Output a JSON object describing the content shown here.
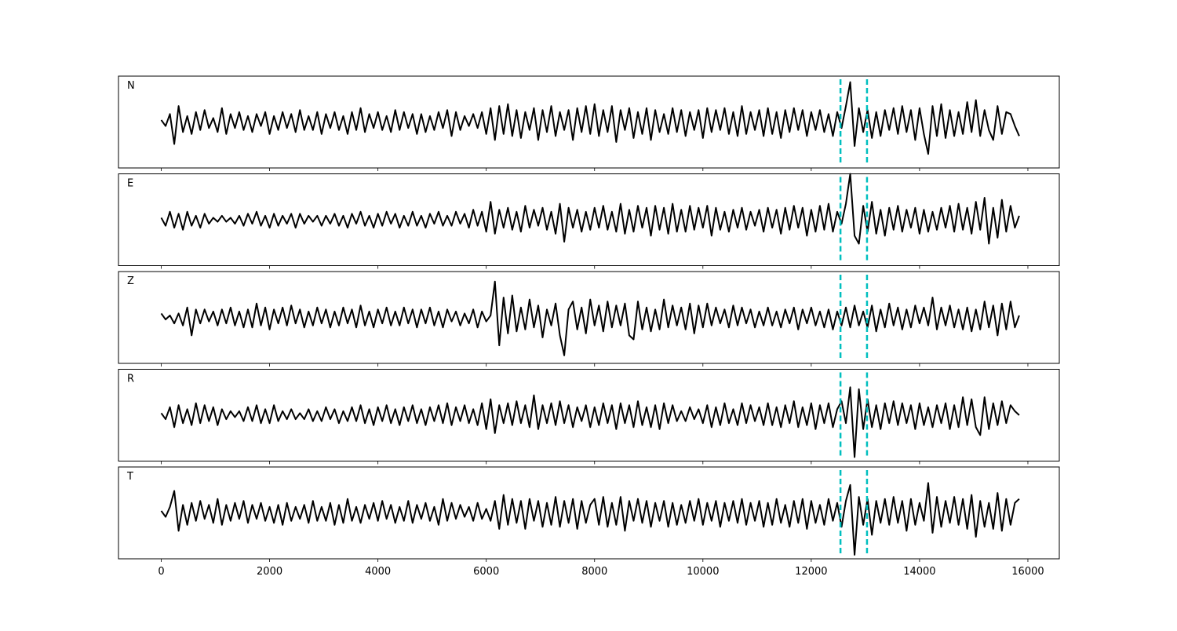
{
  "chart_data": {
    "type": "line",
    "x": [
      0,
      80,
      160,
      240,
      320,
      400,
      480,
      560,
      640,
      720,
      800,
      880,
      960,
      1040,
      1120,
      1200,
      1280,
      1360,
      1440,
      1520,
      1600,
      1680,
      1760,
      1840,
      1920,
      2000,
      2080,
      2160,
      2240,
      2320,
      2400,
      2480,
      2560,
      2640,
      2720,
      2800,
      2880,
      2960,
      3040,
      3120,
      3200,
      3280,
      3360,
      3440,
      3520,
      3600,
      3680,
      3760,
      3840,
      3920,
      4000,
      4080,
      4160,
      4240,
      4320,
      4400,
      4480,
      4560,
      4640,
      4720,
      4800,
      4880,
      4960,
      5040,
      5120,
      5200,
      5280,
      5360,
      5440,
      5520,
      5600,
      5680,
      5760,
      5840,
      5920,
      6000,
      6080,
      6160,
      6240,
      6320,
      6400,
      6480,
      6560,
      6640,
      6720,
      6800,
      6880,
      6960,
      7040,
      7120,
      7200,
      7280,
      7360,
      7440,
      7520,
      7600,
      7680,
      7760,
      7840,
      7920,
      8000,
      8080,
      8160,
      8240,
      8320,
      8400,
      8480,
      8560,
      8640,
      8720,
      8800,
      8880,
      8960,
      9040,
      9120,
      9200,
      9280,
      9360,
      9440,
      9520,
      9600,
      9680,
      9760,
      9840,
      9920,
      10000,
      10080,
      10160,
      10240,
      10320,
      10400,
      10480,
      10560,
      10640,
      10720,
      10800,
      10880,
      10960,
      11040,
      11120,
      11200,
      11280,
      11360,
      11440,
      11520,
      11600,
      11680,
      11760,
      11840,
      11920,
      12000,
      12080,
      12160,
      12240,
      12320,
      12400,
      12480,
      12560,
      12640,
      12720,
      12800,
      12880,
      12960,
      13040,
      13120,
      13200,
      13280,
      13360,
      13440,
      13520,
      13600,
      13680,
      13760,
      13840,
      13920,
      14000,
      14080,
      14160,
      14240,
      14320,
      14400,
      14480,
      14560,
      14640,
      14720,
      14800,
      14880,
      14960,
      15040,
      15120,
      15200,
      15280,
      15360,
      15440,
      15520,
      15600,
      15680,
      15760,
      15840
    ],
    "series": [
      {
        "name": "N",
        "color": "#000000",
        "values": [
          5,
          -10,
          20,
          -55,
          40,
          -25,
          15,
          -30,
          25,
          -20,
          30,
          -15,
          10,
          -25,
          35,
          -30,
          20,
          -15,
          25,
          -20,
          15,
          -25,
          20,
          -10,
          25,
          -30,
          15,
          -20,
          25,
          -15,
          20,
          -25,
          30,
          -20,
          15,
          -20,
          25,
          -30,
          20,
          -15,
          25,
          -20,
          15,
          -30,
          25,
          -20,
          35,
          -25,
          20,
          -15,
          25,
          -20,
          15,
          -25,
          30,
          -20,
          25,
          -15,
          20,
          -30,
          20,
          -25,
          15,
          -20,
          25,
          -15,
          30,
          -35,
          25,
          -20,
          15,
          -10,
          20,
          -15,
          25,
          -30,
          35,
          -45,
          40,
          -30,
          45,
          -35,
          30,
          -40,
          25,
          -20,
          35,
          -45,
          30,
          -25,
          40,
          -35,
          25,
          -20,
          30,
          -45,
          35,
          -25,
          40,
          -30,
          45,
          -35,
          30,
          -25,
          40,
          -50,
          30,
          -20,
          35,
          -40,
          25,
          -30,
          35,
          -45,
          30,
          -25,
          20,
          -30,
          35,
          -25,
          30,
          -35,
          25,
          -20,
          30,
          -40,
          35,
          -25,
          30,
          -20,
          35,
          -30,
          25,
          -35,
          40,
          -30,
          25,
          -20,
          30,
          -35,
          35,
          -30,
          25,
          -40,
          30,
          -25,
          35,
          -20,
          30,
          -35,
          25,
          -20,
          30,
          -25,
          20,
          -35,
          25,
          -15,
          40,
          100,
          -60,
          35,
          -25,
          30,
          -40,
          25,
          -35,
          30,
          -20,
          35,
          -30,
          40,
          -25,
          30,
          -45,
          35,
          -30,
          -80,
          40,
          -35,
          45,
          -40,
          30,
          -35,
          25,
          -30,
          50,
          -25,
          55,
          -35,
          30,
          -20,
          -45,
          40,
          -30,
          25,
          20,
          -10,
          -35
        ]
      },
      {
        "name": "E",
        "color": "#000000",
        "values": [
          5,
          -15,
          20,
          -20,
          15,
          -25,
          20,
          -15,
          10,
          -20,
          15,
          -10,
          5,
          -5,
          10,
          -5,
          5,
          -10,
          10,
          -15,
          15,
          -10,
          20,
          -15,
          10,
          -20,
          15,
          -15,
          10,
          -10,
          15,
          -20,
          15,
          -10,
          10,
          -5,
          10,
          -15,
          10,
          -10,
          15,
          -15,
          10,
          -20,
          15,
          -10,
          20,
          -15,
          10,
          -20,
          15,
          -15,
          20,
          -10,
          15,
          -20,
          10,
          -15,
          20,
          -15,
          10,
          -20,
          15,
          -10,
          20,
          -15,
          10,
          -15,
          20,
          -10,
          15,
          -20,
          25,
          -15,
          20,
          -30,
          45,
          -35,
          25,
          -20,
          30,
          -25,
          20,
          -30,
          35,
          -20,
          25,
          -15,
          30,
          -25,
          20,
          -35,
          40,
          -55,
          30,
          -20,
          25,
          -30,
          20,
          -25,
          30,
          -20,
          35,
          -25,
          20,
          -30,
          40,
          -35,
          25,
          -30,
          35,
          -20,
          30,
          -40,
          35,
          -25,
          30,
          -35,
          40,
          -30,
          25,
          -30,
          35,
          -25,
          30,
          -20,
          35,
          -40,
          30,
          -25,
          20,
          -30,
          25,
          -20,
          30,
          -25,
          20,
          -15,
          25,
          -30,
          30,
          -20,
          25,
          -35,
          30,
          -25,
          35,
          -20,
          30,
          -40,
          25,
          -30,
          35,
          -25,
          40,
          -30,
          20,
          -10,
          40,
          115,
          -40,
          -60,
          35,
          -30,
          45,
          -35,
          25,
          -40,
          30,
          -25,
          35,
          -30,
          25,
          -20,
          30,
          -35,
          25,
          -30,
          20,
          -25,
          30,
          -20,
          35,
          -30,
          40,
          -25,
          30,
          -35,
          45,
          -25,
          55,
          -60,
          30,
          -45,
          50,
          -30,
          35,
          -20,
          10
        ]
      },
      {
        "name": "Z",
        "color": "#000000",
        "values": [
          10,
          -5,
          5,
          -15,
          10,
          -20,
          25,
          -45,
          20,
          -15,
          20,
          -10,
          15,
          -20,
          20,
          -15,
          25,
          -20,
          15,
          -25,
          20,
          -25,
          35,
          -20,
          25,
          -30,
          20,
          -15,
          25,
          -20,
          30,
          -15,
          20,
          -25,
          15,
          -20,
          25,
          -15,
          20,
          -25,
          15,
          -20,
          25,
          -15,
          20,
          -25,
          30,
          -20,
          15,
          -25,
          20,
          -15,
          25,
          -20,
          15,
          -20,
          25,
          -15,
          20,
          -25,
          20,
          -15,
          25,
          -20,
          15,
          -25,
          20,
          -10,
          15,
          -20,
          10,
          -15,
          20,
          -25,
          15,
          -10,
          5,
          90,
          -70,
          50,
          -40,
          55,
          -35,
          25,
          -30,
          45,
          -25,
          30,
          -50,
          20,
          -20,
          35,
          -45,
          -95,
          20,
          40,
          -30,
          25,
          -40,
          45,
          -20,
          30,
          -35,
          40,
          -25,
          30,
          -20,
          35,
          -45,
          -55,
          40,
          -30,
          25,
          -35,
          20,
          -30,
          45,
          -25,
          30,
          -20,
          25,
          -30,
          35,
          -40,
          30,
          -25,
          35,
          -20,
          25,
          -15,
          20,
          -25,
          30,
          -20,
          25,
          -15,
          20,
          -25,
          15,
          -20,
          25,
          -20,
          15,
          -25,
          20,
          -15,
          25,
          -30,
          20,
          -15,
          25,
          -20,
          15,
          -25,
          20,
          -30,
          15,
          -20,
          25,
          -25,
          30,
          -20,
          15,
          -25,
          30,
          -35,
          20,
          -25,
          35,
          -20,
          25,
          -30,
          20,
          -25,
          30,
          -15,
          25,
          -20,
          50,
          -30,
          25,
          -20,
          30,
          -25,
          20,
          -30,
          25,
          -35,
          20,
          -30,
          40,
          -25,
          30,
          -45,
          35,
          -30,
          40,
          -25,
          5
        ]
      },
      {
        "name": "R",
        "color": "#000000",
        "values": [
          5,
          -10,
          20,
          -30,
          25,
          -20,
          15,
          -25,
          30,
          -20,
          25,
          -15,
          20,
          -25,
          15,
          -10,
          10,
          -5,
          10,
          -15,
          20,
          -15,
          25,
          -20,
          15,
          -20,
          25,
          -15,
          10,
          -10,
          15,
          -10,
          5,
          -10,
          15,
          -15,
          10,
          -15,
          20,
          -10,
          15,
          -20,
          10,
          -15,
          20,
          -15,
          25,
          -20,
          15,
          -25,
          20,
          -15,
          25,
          -20,
          15,
          -25,
          20,
          -15,
          25,
          -20,
          15,
          -25,
          20,
          -15,
          25,
          -20,
          30,
          -25,
          20,
          -15,
          25,
          -20,
          15,
          -25,
          30,
          -35,
          40,
          -45,
          25,
          -20,
          30,
          -25,
          35,
          -20,
          25,
          -30,
          50,
          -35,
          25,
          -20,
          30,
          -25,
          35,
          -20,
          25,
          -30,
          20,
          -15,
          25,
          -30,
          20,
          -25,
          30,
          -20,
          25,
          -35,
          30,
          -20,
          25,
          -30,
          35,
          -25,
          20,
          -30,
          25,
          -35,
          30,
          -20,
          25,
          -15,
          10,
          -15,
          20,
          -10,
          15,
          -20,
          25,
          -30,
          20,
          -25,
          30,
          -20,
          15,
          -25,
          30,
          -20,
          25,
          -15,
          20,
          -25,
          30,
          -25,
          20,
          -30,
          25,
          -20,
          35,
          -30,
          20,
          -25,
          30,
          -35,
          25,
          -20,
          30,
          -30,
          15,
          35,
          -20,
          70,
          -105,
          65,
          -35,
          40,
          -30,
          25,
          -35,
          30,
          -20,
          35,
          -25,
          30,
          -20,
          25,
          -35,
          30,
          -25,
          20,
          -30,
          25,
          -20,
          30,
          -35,
          25,
          -30,
          45,
          -25,
          40,
          -30,
          -50,
          45,
          -35,
          30,
          -25,
          35,
          -20,
          25,
          10,
          0
        ]
      },
      {
        "name": "T",
        "color": "#000000",
        "values": [
          5,
          -10,
          15,
          55,
          -45,
          20,
          -30,
          25,
          -20,
          30,
          -15,
          20,
          -25,
          35,
          -30,
          20,
          -20,
          25,
          -15,
          30,
          -25,
          20,
          -15,
          25,
          -20,
          15,
          -25,
          20,
          -30,
          25,
          -20,
          15,
          -15,
          20,
          -25,
          30,
          -20,
          15,
          -20,
          25,
          -30,
          20,
          -25,
          35,
          -20,
          15,
          -25,
          20,
          -15,
          25,
          -20,
          30,
          -15,
          20,
          -25,
          15,
          -20,
          30,
          -25,
          20,
          -15,
          25,
          -20,
          15,
          -30,
          35,
          -20,
          25,
          -15,
          20,
          -10,
          15,
          -20,
          25,
          -15,
          10,
          -20,
          30,
          -40,
          45,
          -30,
          35,
          -25,
          30,
          -40,
          35,
          -20,
          30,
          -35,
          25,
          -30,
          40,
          -35,
          30,
          -25,
          35,
          -40,
          30,
          -25,
          20,
          35,
          -30,
          40,
          -35,
          25,
          -30,
          40,
          -45,
          30,
          -20,
          35,
          -25,
          30,
          -35,
          25,
          -20,
          30,
          -35,
          25,
          -30,
          20,
          -25,
          30,
          -20,
          35,
          -30,
          25,
          -20,
          30,
          -35,
          25,
          -20,
          30,
          -25,
          35,
          -30,
          25,
          -20,
          30,
          -35,
          25,
          -30,
          35,
          -25,
          20,
          -35,
          30,
          -25,
          35,
          -40,
          30,
          -25,
          20,
          -30,
          35,
          -20,
          25,
          -35,
          30,
          70,
          -105,
          40,
          -30,
          35,
          -55,
          30,
          -25,
          35,
          -30,
          40,
          -25,
          30,
          -45,
          35,
          -30,
          25,
          -20,
          75,
          -50,
          40,
          -35,
          30,
          -25,
          40,
          -30,
          35,
          -40,
          45,
          -60,
          30,
          -35,
          25,
          -40,
          50,
          -45,
          35,
          -30,
          25,
          35
        ]
      }
    ],
    "xlim": [
      -790,
      16580
    ],
    "xticks": [
      0,
      2000,
      4000,
      6000,
      8000,
      10000,
      12000,
      14000,
      16000
    ],
    "ylim": [
      -115,
      115
    ],
    "vlines": {
      "values": [
        12540,
        13030
      ],
      "color": "#00bfbf",
      "style": "dashed"
    }
  }
}
